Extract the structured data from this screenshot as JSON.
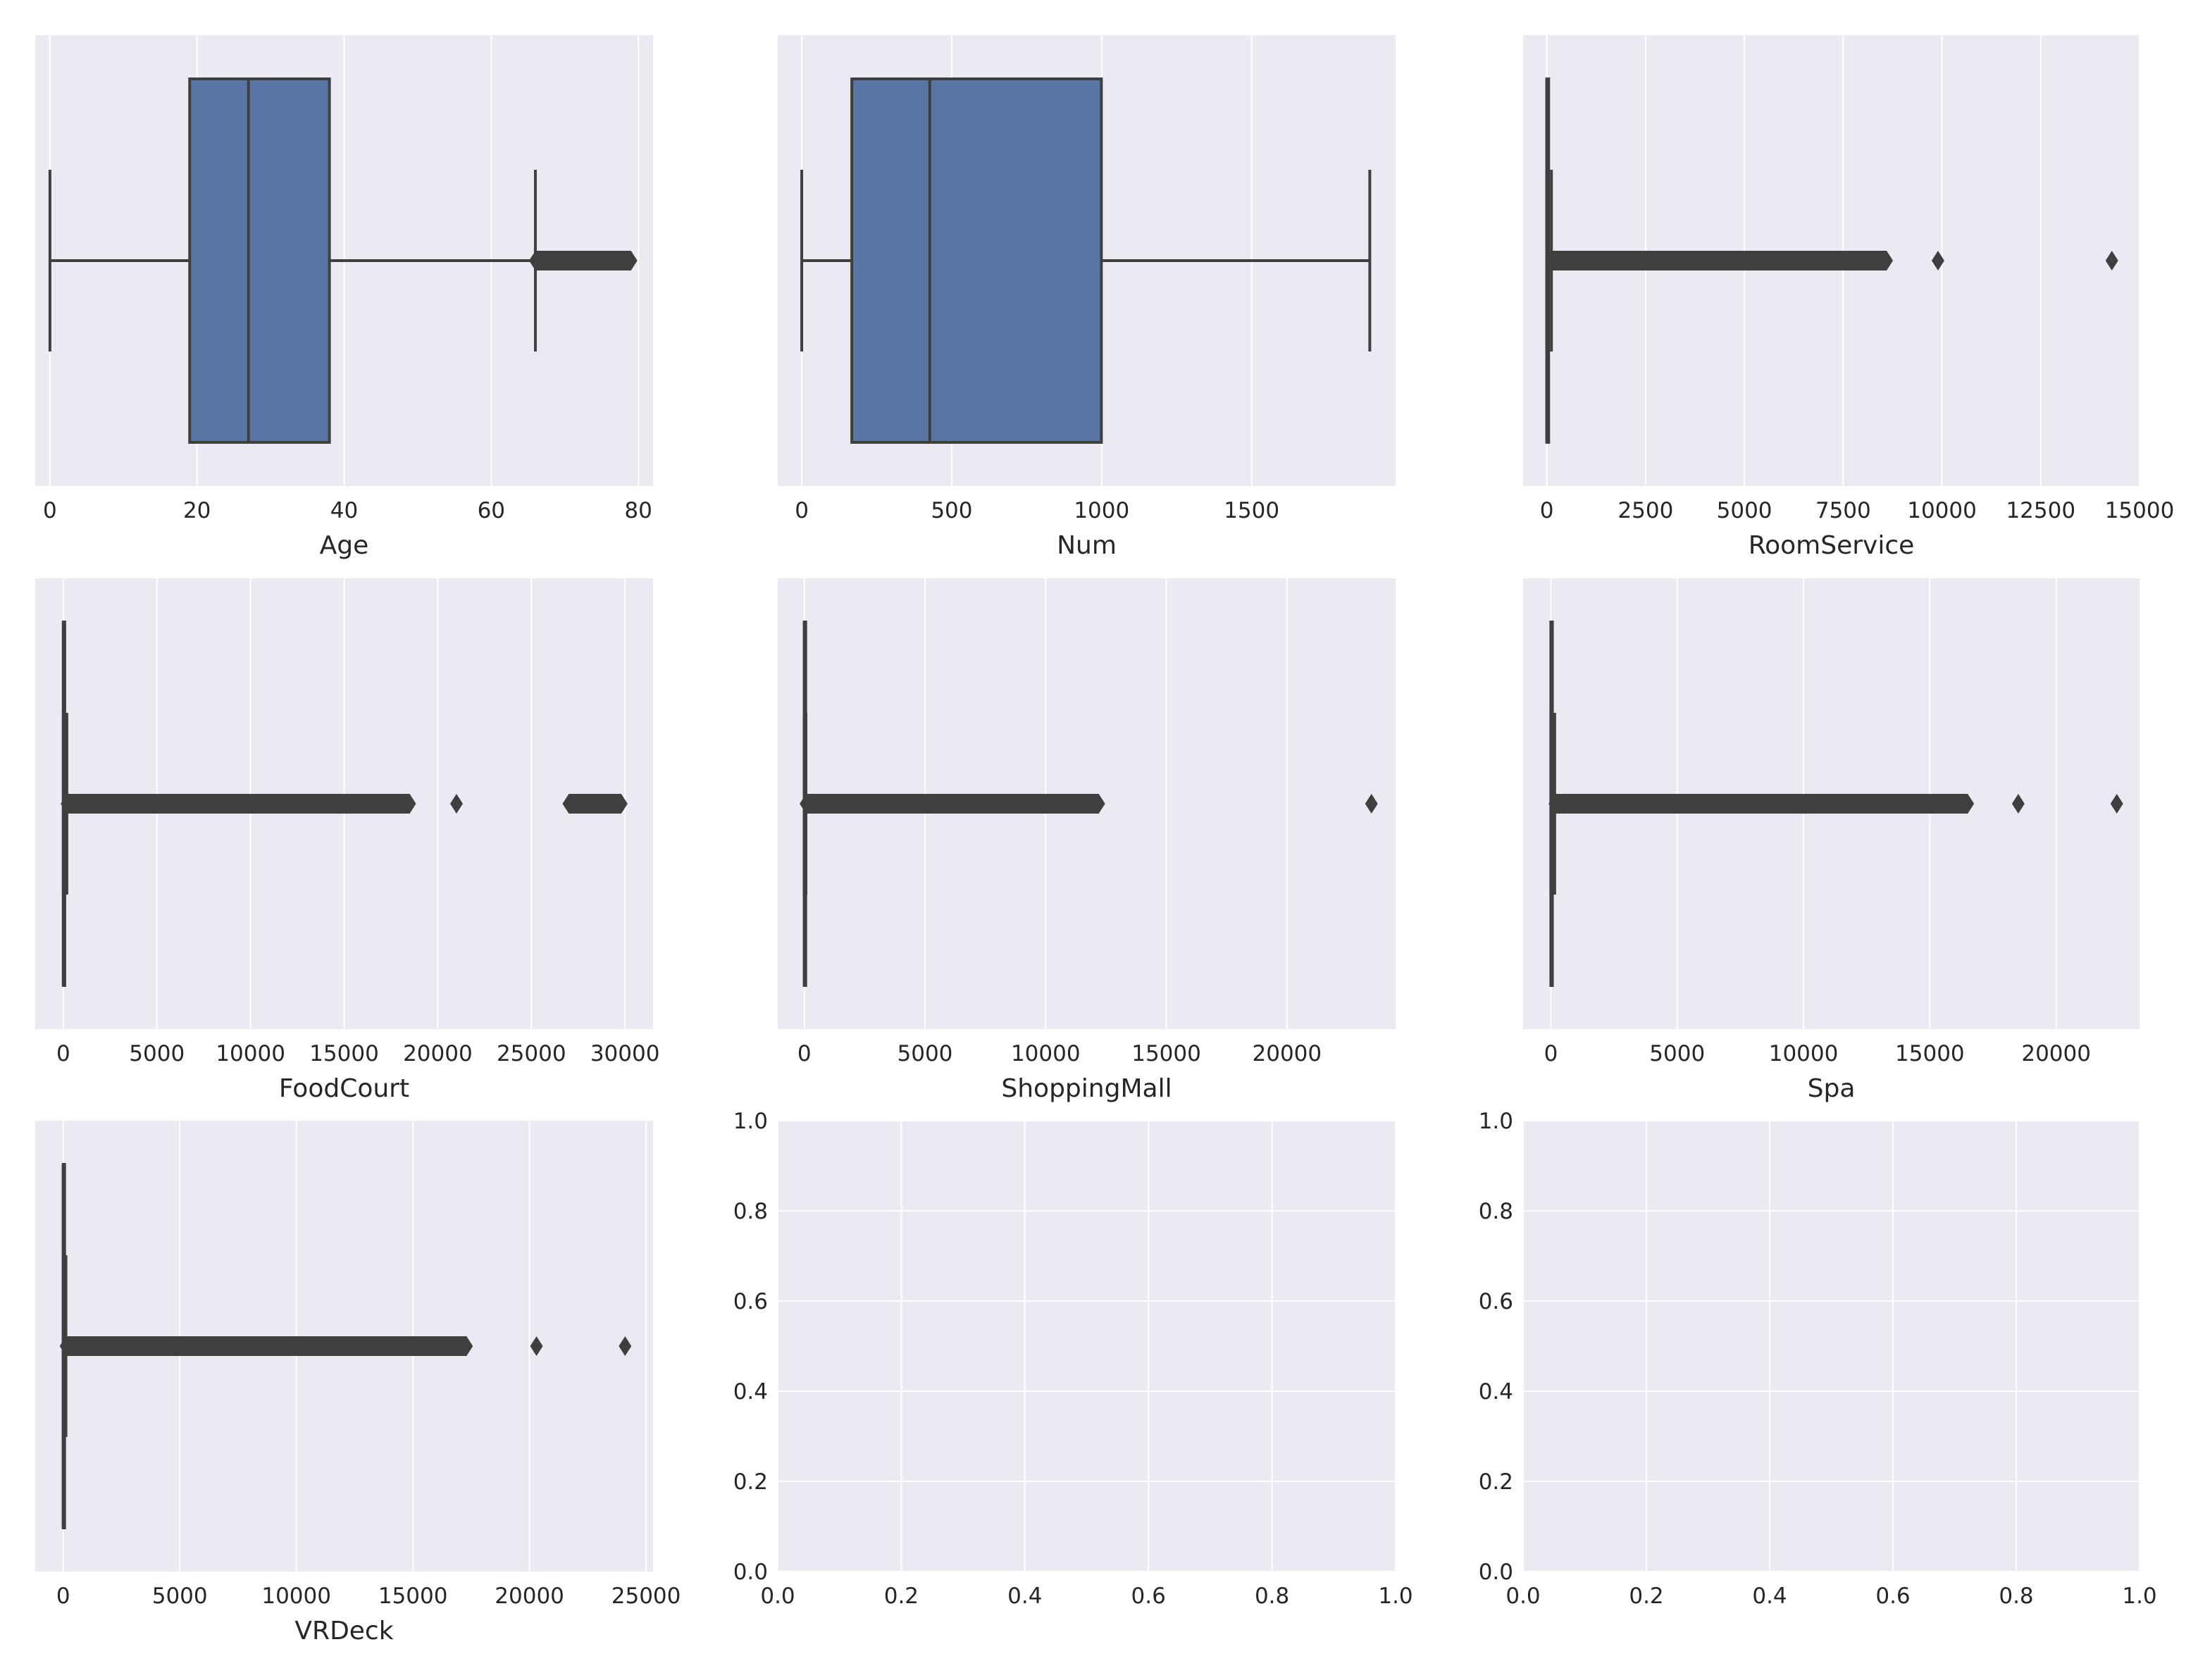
{
  "colors": {
    "axes_background": "#EAEAF2",
    "grid": "#FFFFFF",
    "box_fill": "#5975A4",
    "line": "#3F3F3F",
    "text": "#262626"
  },
  "chart_data": [
    {
      "type": "boxplot",
      "orientation": "horizontal",
      "xlabel": "Age",
      "xlim": [
        -2,
        82
      ],
      "ticks": [
        0,
        20,
        40,
        60,
        80
      ],
      "tick_labels": [
        "0",
        "20",
        "40",
        "60",
        "80"
      ],
      "stats": {
        "whisker_low": 0,
        "q1": 19,
        "median": 27,
        "q3": 38,
        "whisker_high": 66
      },
      "outliers": [
        66,
        67,
        68,
        69,
        70,
        71,
        72,
        73,
        74,
        75,
        76,
        77,
        78,
        79
      ]
    },
    {
      "type": "boxplot",
      "orientation": "horizontal",
      "xlabel": "Num",
      "xlim": [
        -80,
        1980
      ],
      "ticks": [
        0,
        500,
        1000,
        1500
      ],
      "tick_labels": [
        "0",
        "500",
        "1000",
        "1500"
      ],
      "stats": {
        "whisker_low": 0,
        "q1": 167,
        "median": 427,
        "q3": 999,
        "whisker_high": 1894
      },
      "outliers": []
    },
    {
      "type": "boxplot",
      "orientation": "horizontal",
      "xlabel": "RoomService",
      "xlim": [
        -600,
        15000
      ],
      "ticks": [
        0,
        2500,
        5000,
        7500,
        10000,
        12500,
        15000
      ],
      "tick_labels": [
        "0",
        "2500",
        "5000",
        "7500",
        "10000",
        "12500",
        "15000"
      ],
      "stats": {
        "whisker_low": 0,
        "q1": 0,
        "median": 0,
        "q3": 47,
        "whisker_high": 117
      },
      "outliers": [
        120,
        400,
        800,
        1200,
        1600,
        2000,
        2400,
        2800,
        3000,
        3200,
        3400,
        3600,
        3800,
        4000,
        4200,
        4400,
        4600,
        4800,
        5000,
        5300,
        5500,
        5700,
        5900,
        6100,
        6400,
        6700,
        6900,
        7300,
        7500,
        7900,
        8100,
        8200,
        8600,
        9900,
        14300
      ]
    },
    {
      "type": "boxplot",
      "orientation": "horizontal",
      "xlabel": "FoodCourt",
      "xlim": [
        -1500,
        31500
      ],
      "ticks": [
        0,
        5000,
        10000,
        15000,
        20000,
        25000,
        30000
      ],
      "tick_labels": [
        "0",
        "5000",
        "10000",
        "15000",
        "20000",
        "25000",
        "30000"
      ],
      "stats": {
        "whisker_low": 0,
        "q1": 0,
        "median": 0,
        "q3": 76,
        "whisker_high": 190
      },
      "outliers": [
        200,
        1000,
        2000,
        3000,
        4000,
        5000,
        6000,
        7000,
        7500,
        8000,
        8500,
        9000,
        9500,
        10000,
        10500,
        11000,
        11500,
        12000,
        12500,
        13000,
        13500,
        14000,
        14500,
        15000,
        15500,
        16000,
        16500,
        17000,
        17500,
        18000,
        18500,
        21000,
        27000,
        27300,
        27800,
        29800
      ]
    },
    {
      "type": "boxplot",
      "orientation": "horizontal",
      "xlabel": "ShoppingMall",
      "xlim": [
        -1100,
        24500
      ],
      "ticks": [
        0,
        5000,
        10000,
        15000,
        20000
      ],
      "tick_labels": [
        "0",
        "5000",
        "10000",
        "15000",
        "20000"
      ],
      "stats": {
        "whisker_low": 0,
        "q1": 0,
        "median": 0,
        "q3": 27,
        "whisker_high": 67
      },
      "outliers": [
        70,
        500,
        1000,
        1500,
        2000,
        2500,
        3000,
        3500,
        4000,
        4500,
        5000,
        5600,
        6000,
        6500,
        7000,
        7800,
        9100,
        10400,
        10700,
        12200,
        23500
      ]
    },
    {
      "type": "boxplot",
      "orientation": "horizontal",
      "xlabel": "Spa",
      "xlim": [
        -1100,
        23300
      ],
      "ticks": [
        0,
        5000,
        10000,
        15000,
        20000
      ],
      "tick_labels": [
        "0",
        "5000",
        "10000",
        "15000",
        "20000"
      ],
      "stats": {
        "whisker_low": 0,
        "q1": 0,
        "median": 0,
        "q3": 59,
        "whisker_high": 150
      },
      "outliers": [
        160,
        800,
        1600,
        2400,
        3200,
        4000,
        4800,
        5600,
        6400,
        7000,
        7600,
        8200,
        8800,
        9400,
        10000,
        10500,
        11000,
        12000,
        13000,
        13900,
        15000,
        15500,
        16000,
        16500,
        18500,
        22400
      ]
    },
    {
      "type": "boxplot",
      "orientation": "horizontal",
      "xlabel": "VRDeck",
      "xlim": [
        -1200,
        25300
      ],
      "ticks": [
        0,
        5000,
        10000,
        15000,
        20000,
        25000
      ],
      "tick_labels": [
        "0",
        "5000",
        "10000",
        "15000",
        "20000",
        "25000"
      ],
      "stats": {
        "whisker_low": 0,
        "q1": 0,
        "median": 0,
        "q3": 46,
        "whisker_high": 117
      },
      "outliers": [
        120,
        800,
        1600,
        2400,
        3200,
        4000,
        4800,
        5600,
        6400,
        7200,
        8000,
        8800,
        9200,
        9600,
        10000,
        10400,
        11000,
        11500,
        12000,
        12400,
        12700,
        14500,
        16300,
        17100,
        17300,
        20300,
        24100
      ]
    },
    {
      "type": "empty",
      "xlabel": "",
      "xlim": [
        0,
        1
      ],
      "ylim": [
        0,
        1
      ],
      "xticks": [
        0,
        0.2,
        0.4,
        0.6,
        0.8,
        1
      ],
      "yticks": [
        0,
        0.2,
        0.4,
        0.6,
        0.8,
        1
      ],
      "xtick_labels": [
        "0.0",
        "0.2",
        "0.4",
        "0.6",
        "0.8",
        "1.0"
      ],
      "ytick_labels": [
        "0.0",
        "0.2",
        "0.4",
        "0.6",
        "0.8",
        "1.0"
      ]
    },
    {
      "type": "empty",
      "xlabel": "",
      "xlim": [
        0,
        1
      ],
      "ylim": [
        0,
        1
      ],
      "xticks": [
        0,
        0.2,
        0.4,
        0.6,
        0.8,
        1
      ],
      "yticks": [
        0,
        0.2,
        0.4,
        0.6,
        0.8,
        1
      ],
      "xtick_labels": [
        "0.0",
        "0.2",
        "0.4",
        "0.6",
        "0.8",
        "1.0"
      ],
      "ytick_labels": [
        "0.0",
        "0.2",
        "0.4",
        "0.6",
        "0.8",
        "1.0"
      ]
    }
  ]
}
